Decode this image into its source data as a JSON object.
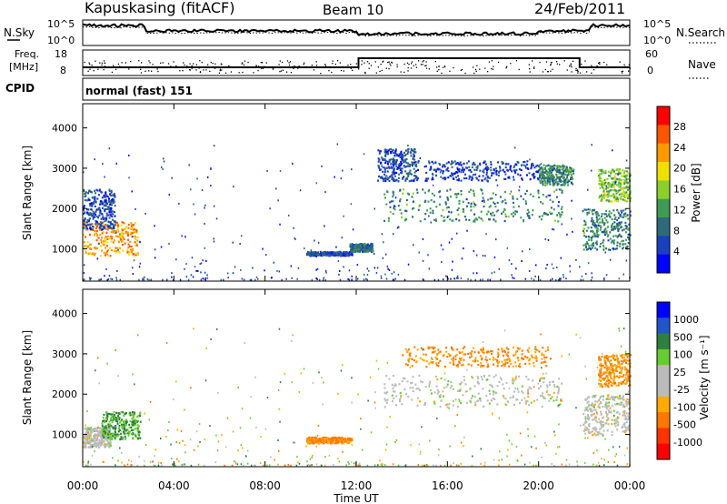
{
  "header": {
    "station": "Kapuskasing (fitACF)",
    "beam": "Beam 10",
    "date": "24/Feb/2011"
  },
  "noise_panel": {
    "left_label": "N.Sky",
    "right_label": "N.Search",
    "left_ticks": [
      "10^5",
      "10^0"
    ],
    "right_ticks": [
      "10^5",
      "10^0"
    ]
  },
  "freq_panel": {
    "left_label_1": "Freq.",
    "left_label_2": "[MHz]",
    "left_ticks": [
      "18",
      "8"
    ],
    "right_label": "Nave",
    "right_ticks": [
      "60",
      "0"
    ]
  },
  "cpid": {
    "label": "CPID",
    "value": "normal (fast) 151"
  },
  "colors": {
    "power_scale": [
      "#0000ff",
      "#1a3fbf",
      "#2e6a7a",
      "#3f9a55",
      "#8ccf2a",
      "#f0e000",
      "#ff9900",
      "#ff5500",
      "#ff0000"
    ],
    "velocity_scale": [
      "#0000ff",
      "#2255cc",
      "#2f7f3f",
      "#66cc33",
      "#bbbbbb",
      "#bbbbbb",
      "#ffaa00",
      "#ff7700",
      "#ff3300",
      "#ff0000"
    ]
  },
  "chart_data": [
    {
      "type": "heatmap",
      "title": "",
      "xlabel": "Time UT",
      "ylabel": "Slant Range [km]",
      "xlim": [
        0,
        24
      ],
      "ylim": [
        200,
        4600
      ],
      "xticks": [
        "00:00",
        "04:00",
        "08:00",
        "12:00",
        "16:00",
        "20:00",
        "00:00"
      ],
      "yticks": [
        1000,
        2000,
        3000,
        4000
      ],
      "colorbar_label": "Power [dB]",
      "colorbar_ticks": [
        4,
        8,
        12,
        16,
        20,
        24,
        28
      ],
      "colorbar_range": [
        0,
        30
      ],
      "scatter_regions": [
        {
          "t": [
            0.0,
            2.4
          ],
          "r": [
            850,
            1700
          ],
          "level": 22
        },
        {
          "t": [
            0.0,
            1.4
          ],
          "r": [
            1500,
            2500
          ],
          "level": 6
        },
        {
          "t": [
            9.8,
            11.8
          ],
          "r": [
            850,
            950
          ],
          "level": 6
        },
        {
          "t": [
            11.7,
            12.7
          ],
          "r": [
            950,
            1150
          ],
          "level": 8
        },
        {
          "t": [
            12.9,
            14.7
          ],
          "r": [
            2700,
            3500
          ],
          "level": 6
        },
        {
          "t": [
            13.2,
            21.0
          ],
          "r": [
            1700,
            2500
          ],
          "level": 10
        },
        {
          "t": [
            15.0,
            20.0
          ],
          "r": [
            2700,
            3200
          ],
          "level": 5
        },
        {
          "t": [
            20.0,
            21.5
          ],
          "r": [
            2600,
            3100
          ],
          "level": 10
        },
        {
          "t": [
            21.9,
            24.0
          ],
          "r": [
            1000,
            2000
          ],
          "level": 10
        },
        {
          "t": [
            22.6,
            24.0
          ],
          "r": [
            2200,
            3000
          ],
          "level": 14
        }
      ]
    },
    {
      "type": "heatmap",
      "title": "",
      "xlabel": "Time UT",
      "ylabel": "Slant Range [km]",
      "xlim": [
        0,
        24
      ],
      "ylim": [
        200,
        4600
      ],
      "xticks": [
        "00:00",
        "04:00",
        "08:00",
        "12:00",
        "16:00",
        "20:00",
        "00:00"
      ],
      "yticks": [
        1000,
        2000,
        3000,
        4000
      ],
      "colorbar_label": "Velocity [m s⁻¹]",
      "colorbar_ticks": [
        1000,
        500,
        100,
        25,
        -25,
        -100,
        -500,
        -1000
      ],
      "scatter_regions": [
        {
          "t": [
            0.0,
            1.2
          ],
          "r": [
            700,
            1200
          ],
          "level": 0
        },
        {
          "t": [
            0.8,
            2.5
          ],
          "r": [
            900,
            1600
          ],
          "level": 100
        },
        {
          "t": [
            9.8,
            11.8
          ],
          "r": [
            800,
            950
          ],
          "level": -100
        },
        {
          "t": [
            13.2,
            21.0
          ],
          "r": [
            1700,
            2500
          ],
          "level": 0
        },
        {
          "t": [
            14.0,
            20.5
          ],
          "r": [
            2700,
            3200
          ],
          "level": -100
        },
        {
          "t": [
            21.9,
            24.0
          ],
          "r": [
            1000,
            2000
          ],
          "level": 0
        },
        {
          "t": [
            22.6,
            24.0
          ],
          "r": [
            2200,
            3000
          ],
          "level": -100
        }
      ]
    }
  ]
}
